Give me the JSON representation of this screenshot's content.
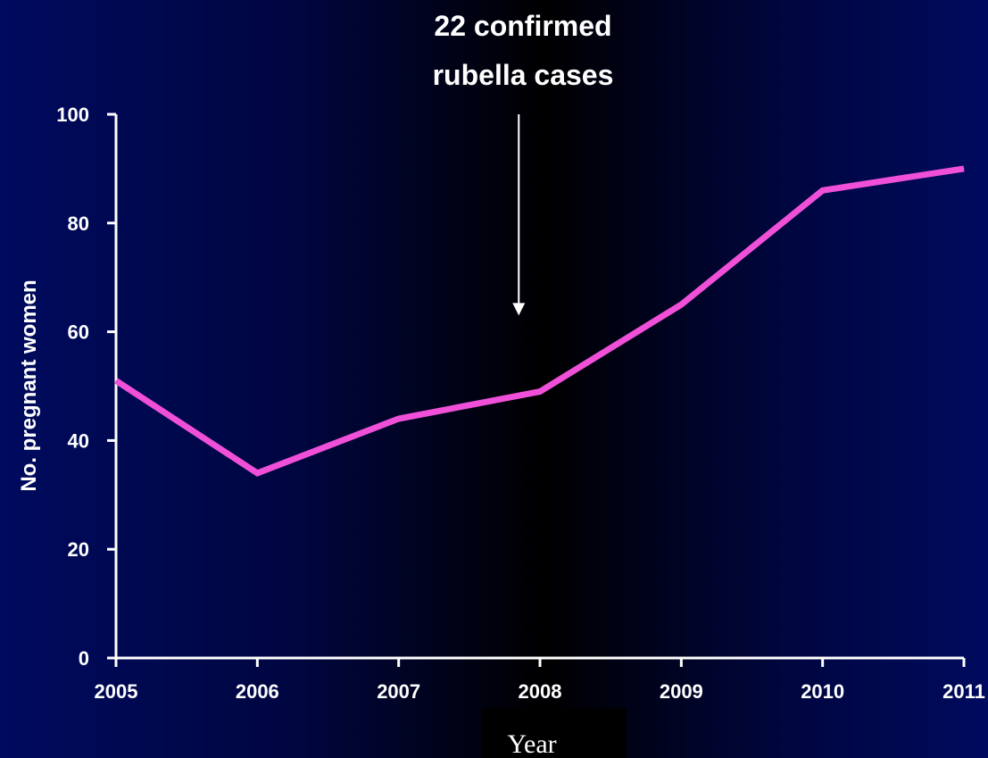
{
  "chart_data": {
    "type": "line",
    "title": "",
    "xlabel": "Year",
    "ylabel": "No. pregnant women",
    "x": [
      "2005",
      "2006",
      "2007",
      "2008",
      "2009",
      "2010",
      "2011"
    ],
    "series": [
      {
        "values": [
          51,
          34,
          44,
          49,
          65,
          86,
          90
        ]
      }
    ],
    "ylim": [
      0,
      100
    ],
    "yticks": [
      0,
      20,
      40,
      60,
      80,
      100
    ],
    "grid": false,
    "legend": "none",
    "annotations": [
      {
        "line1": "22 confirmed",
        "line2": "rubella cases",
        "x": 2007.85,
        "y_start": 100,
        "y_end": 63
      }
    ],
    "colors": {
      "line": "#f050d8",
      "axis": "#ffffff",
      "text": "#ffffff"
    }
  }
}
